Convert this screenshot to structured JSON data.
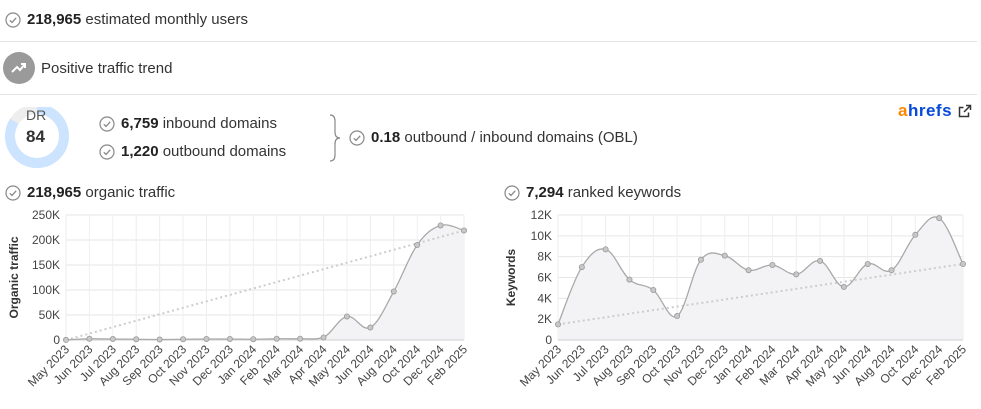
{
  "summary": {
    "users_value": "218,965",
    "users_label": "estimated monthly users",
    "trend_label": "Positive traffic trend"
  },
  "domain_rating": {
    "label": "DR",
    "value": "84",
    "fill_fraction": 0.84
  },
  "backlinks": {
    "inbound_value": "6,759",
    "inbound_label": "inbound domains",
    "outbound_value": "1,220",
    "outbound_label": "outbound domains",
    "obl_value": "0.18",
    "obl_label": "outbound / inbound domains (OBL)"
  },
  "brand": {
    "logo_a": "a",
    "logo_rest": "hrefs"
  },
  "charts": {
    "traffic": {
      "header_value": "218,965",
      "header_label": "organic traffic"
    },
    "keywords": {
      "header_value": "7,294",
      "header_label": "ranked keywords"
    }
  },
  "colors": {
    "check": "#888888",
    "line": "#a9a9a9",
    "fill": "#f3f3f5",
    "trend": "#cccccc",
    "ring": "#cce4ff",
    "brand_orange": "#ff8800",
    "brand_blue": "#054ada"
  },
  "chart_data": [
    {
      "type": "area",
      "ylabel": "Organic traffic",
      "ylim": [
        0,
        250000
      ],
      "y_ticks": [
        "0",
        "50K",
        "100K",
        "150K",
        "200K",
        "250K"
      ],
      "y_tick_values": [
        0,
        50000,
        100000,
        150000,
        200000,
        250000
      ],
      "x_tick_labels": [
        "May 2023",
        "Jun 2023",
        "Jul 2023",
        "Aug 2023",
        "Sep 2023",
        "Oct 2023",
        "Nov 2023",
        "Dec 2023",
        "Jan 2024",
        "Feb 2024",
        "Mar 2024",
        "Apr 2024",
        "May 2024",
        "Jun 2024",
        "Aug 2024",
        "Oct 2024",
        "Dec 2024",
        "Feb 2025"
      ],
      "series": [
        {
          "values": [
            200,
            2500,
            2000,
            1500,
            1000,
            1500,
            2000,
            2000,
            1500,
            2500,
            2500,
            5000,
            47000,
            25000,
            97000,
            190000,
            229000,
            219000
          ]
        }
      ],
      "trend": [
        0,
        219000
      ],
      "grid": true
    },
    {
      "type": "area",
      "ylabel": "Keywords",
      "ylim": [
        0,
        12000
      ],
      "y_ticks": [
        "0",
        "2K",
        "4K",
        "6K",
        "8K",
        "10K",
        "12K"
      ],
      "y_tick_values": [
        0,
        2000,
        4000,
        6000,
        8000,
        10000,
        12000
      ],
      "x_tick_labels": [
        "May 2023",
        "Jun 2023",
        "Jul 2023",
        "Aug 2023",
        "Sep 2023",
        "Oct 2023",
        "Nov 2023",
        "Dec 2023",
        "Jan 2024",
        "Feb 2024",
        "Mar 2024",
        "Apr 2024",
        "May 2024",
        "Jun 2024",
        "Aug 2024",
        "Oct 2024",
        "Dec 2024",
        "Feb 2025"
      ],
      "series": [
        {
          "values": [
            1500,
            7000,
            8700,
            5800,
            4800,
            2300,
            7700,
            8100,
            6700,
            7200,
            6300,
            7600,
            5100,
            7300,
            6700,
            10100,
            11700,
            7300
          ]
        }
      ],
      "trend": [
        1500,
        7300
      ],
      "grid": true
    }
  ]
}
